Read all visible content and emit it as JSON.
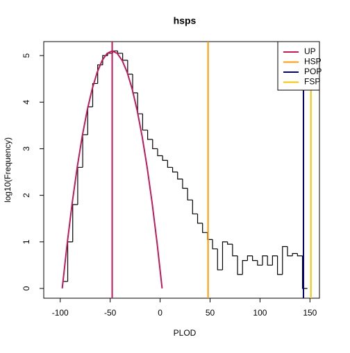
{
  "chart_data": {
    "type": "histogram",
    "title": "hsps",
    "x_label": "PLOD",
    "y_label": "log10(Frequency)",
    "bins": [
      -97.5,
      -92.5,
      -87.5,
      -82.5,
      -77.5,
      -72.5,
      -67.5,
      -62.5,
      -57.5,
      -52.5,
      -47.5,
      -42.5,
      -37.5,
      -32.5,
      -27.5,
      -22.5,
      -17.5,
      -12.5,
      -7.5,
      -2.5,
      2.5,
      7.5,
      12.5,
      17.5,
      22.5,
      27.5,
      32.5,
      37.5,
      42.5,
      47.5,
      52.5,
      57.5,
      62.5,
      67.5,
      72.5,
      77.5,
      82.5,
      87.5,
      92.5,
      97.5,
      102.5,
      107.5,
      112.5,
      117.5,
      122.5,
      127.5,
      132.5,
      137.5,
      142.5,
      147.5
    ],
    "values": [
      0.15,
      1.0,
      1.8,
      2.6,
      3.3,
      3.9,
      4.4,
      4.8,
      5.0,
      5.05,
      5.1,
      5.05,
      4.9,
      4.6,
      4.2,
      3.75,
      3.4,
      3.2,
      3.0,
      2.85,
      2.75,
      2.6,
      2.5,
      2.35,
      2.15,
      1.9,
      1.6,
      1.4,
      1.2,
      1.05,
      0.85,
      0.4,
      1.0,
      0.95,
      0.7,
      0.3,
      0.6,
      0.7,
      0.6,
      0.5,
      0.7,
      0.5,
      0.7,
      0.3,
      0.9,
      0.7,
      0.75,
      0.7,
      0.0
    ],
    "color": "#000000",
    "curve": {
      "color": "#c2185b",
      "x": [
        -98,
        -93,
        -88,
        -83,
        -78,
        -73,
        -68,
        -63,
        -58,
        -53,
        -48,
        -43,
        -38,
        -33,
        -28,
        -23,
        -18,
        -13,
        -8,
        -3,
        2
      ],
      "values": [
        0,
        0.969,
        1.836,
        2.601,
        3.264,
        3.825,
        4.284,
        4.641,
        4.896,
        5.049,
        5.1,
        5.049,
        4.896,
        4.641,
        4.284,
        3.825,
        3.264,
        2.601,
        1.836,
        0.969,
        0
      ]
    },
    "series": [
      {
        "name": "UP",
        "color": "#c2185b",
        "x": -48
      },
      {
        "name": "HSP",
        "color": "#ff9900",
        "x": 48
      },
      {
        "name": "POP",
        "color": "#00007f",
        "x": 143.5
      },
      {
        "name": "FSP",
        "color": "#f5c400",
        "x": 151
      }
    ],
    "xlim": [
      -116.5,
      159.5
    ],
    "ylim": [
      -0.21,
      5.3
    ],
    "xticks": [
      -100,
      -50,
      0,
      50,
      100,
      150
    ],
    "yticks": [
      0,
      1,
      2,
      3,
      4,
      5
    ],
    "legend": "top-right"
  }
}
